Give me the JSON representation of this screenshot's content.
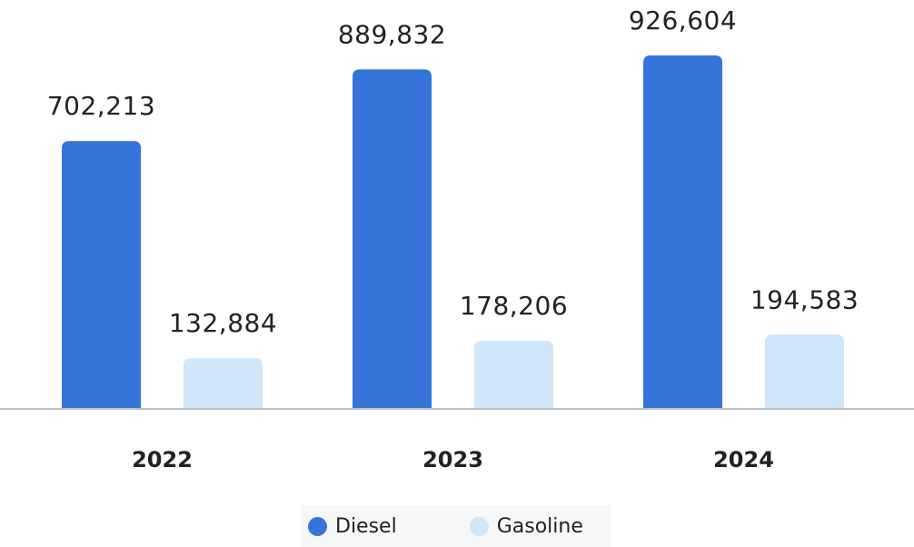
{
  "chart_data": {
    "type": "bar",
    "categories": [
      "2022",
      "2023",
      "2024"
    ],
    "series": [
      {
        "name": "Diesel",
        "values": [
          702213,
          889832,
          926604
        ],
        "labels": [
          "702,213",
          "889,832",
          "926,604"
        ],
        "color": "#3674d9"
      },
      {
        "name": "Gasoline",
        "values": [
          132884,
          178206,
          194583
        ],
        "labels": [
          "132,884",
          "178,206",
          "194,583"
        ],
        "color": "#cfe6fb"
      }
    ],
    "ylim": [
      0,
      1000000
    ],
    "grid": false,
    "legend_position": "bottom",
    "baseline_color": "#b9c3cc"
  }
}
